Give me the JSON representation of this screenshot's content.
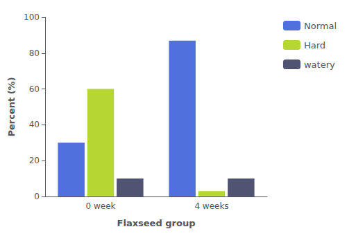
{
  "chart_data": {
    "type": "bar",
    "categories": [
      "0 week",
      "4 weeks"
    ],
    "series": [
      {
        "name": "Normal",
        "values": [
          30,
          87
        ]
      },
      {
        "name": "Hard",
        "values": [
          60,
          3
        ]
      },
      {
        "name": "watery",
        "values": [
          10,
          10
        ]
      }
    ],
    "xlabel": "Flaxseed group",
    "ylabel": "Percent (%)",
    "ylim": [
      0,
      100
    ],
    "yticks": [
      0,
      20,
      40,
      60,
      80,
      100
    ],
    "grid": false,
    "legend": "right"
  }
}
